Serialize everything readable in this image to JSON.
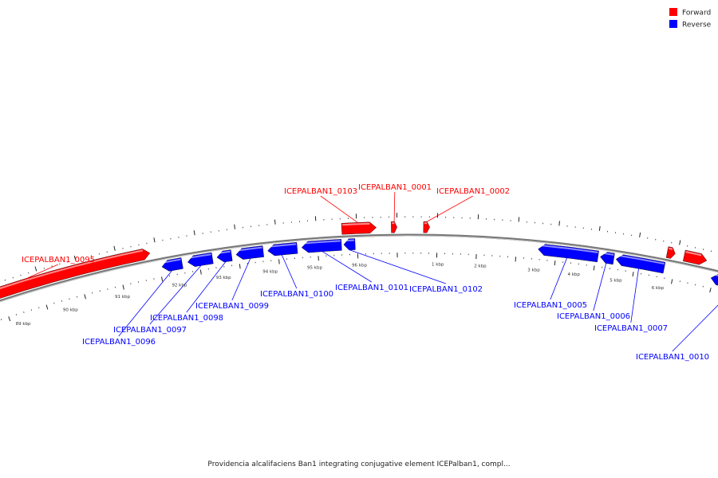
{
  "caption": "Providencia alcalifaciens Ban1 integrating conjugative element ICEPalban1, compl...",
  "legend": {
    "forward_label": "Forward",
    "reverse_label": "Reverse",
    "forward_color": "#ff0000",
    "reverse_color": "#0000ff"
  },
  "tick_labels": [
    "89 kbp",
    "90 kbp",
    "91 kbp",
    "92 kbp",
    "93 kbp",
    "94 kbp",
    "95 kbp",
    "96 kbp",
    "1 kbp",
    "2 kbp",
    "3 kbp",
    "4 kbp",
    "5 kbp",
    "6 kbp"
  ],
  "genes": [
    {
      "id": "ICEPALBAN1_0095",
      "strand": "forward"
    },
    {
      "id": "ICEPALBAN1_0096",
      "strand": "reverse"
    },
    {
      "id": "ICEPALBAN1_0097",
      "strand": "reverse"
    },
    {
      "id": "ICEPALBAN1_0098",
      "strand": "reverse"
    },
    {
      "id": "ICEPALBAN1_0099",
      "strand": "reverse"
    },
    {
      "id": "ICEPALBAN1_0100",
      "strand": "reverse"
    },
    {
      "id": "ICEPALBAN1_0101",
      "strand": "reverse"
    },
    {
      "id": "ICEPALBAN1_0102",
      "strand": "reverse"
    },
    {
      "id": "ICEPALBAN1_0103",
      "strand": "forward"
    },
    {
      "id": "ICEPALBAN1_0001",
      "strand": "forward"
    },
    {
      "id": "ICEPALBAN1_0002",
      "strand": "forward"
    },
    {
      "id": "ICEPALBAN1_0005",
      "strand": "reverse"
    },
    {
      "id": "ICEPALBAN1_0006",
      "strand": "reverse"
    },
    {
      "id": "ICEPALBAN1_0007",
      "strand": "reverse"
    },
    {
      "id": "ICEPALBAN1_0010",
      "strand": "reverse"
    }
  ]
}
